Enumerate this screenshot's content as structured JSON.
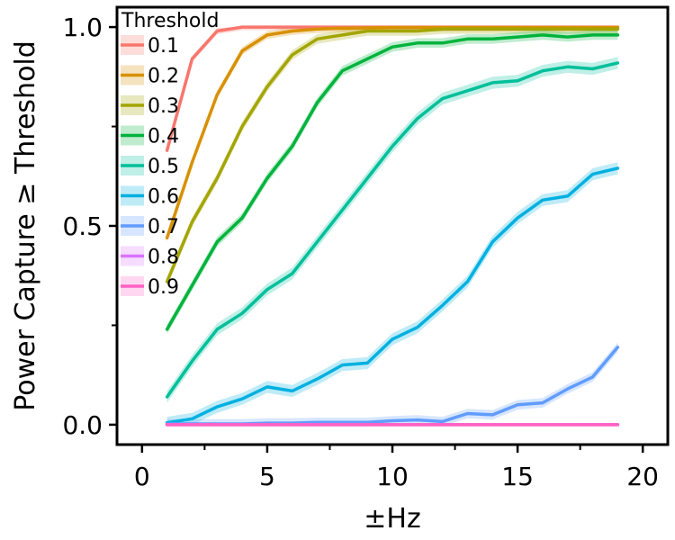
{
  "chart_data": {
    "type": "line",
    "xlabel": "±Hz",
    "ylabel": "Power Capture ≥ Threshold",
    "xlim": [
      -1,
      21
    ],
    "ylim": [
      -0.05,
      1.05
    ],
    "x_ticks": [
      0,
      5,
      10,
      15,
      20
    ],
    "x_tick_labels": [
      "0",
      "5",
      "10",
      "15",
      "20"
    ],
    "y_ticks": [
      0.0,
      0.5,
      1.0
    ],
    "y_tick_labels": [
      "0.0",
      "0.5",
      "1.0"
    ],
    "y_minor_ticks": [
      0.25,
      0.75
    ],
    "grid": false,
    "legend": {
      "title": "Threshold",
      "position": "top-left"
    },
    "x": [
      1,
      2,
      3,
      4,
      5,
      6,
      7,
      8,
      9,
      10,
      11,
      12,
      13,
      14,
      15,
      16,
      17,
      18,
      19
    ],
    "series": [
      {
        "name": "0.1",
        "color": "#f8766d",
        "band": 0.008,
        "values": [
          0.69,
          0.92,
          0.99,
          1.0,
          1.0,
          1.0,
          1.0,
          1.0,
          1.0,
          1.0,
          1.0,
          1.0,
          1.0,
          1.0,
          1.0,
          1.0,
          1.0,
          1.0,
          1.0
        ]
      },
      {
        "name": "0.2",
        "color": "#d89000",
        "band": 0.01,
        "values": [
          0.47,
          0.66,
          0.83,
          0.94,
          0.98,
          0.99,
          0.995,
          0.997,
          0.998,
          0.999,
          0.999,
          0.999,
          0.999,
          0.999,
          0.999,
          0.999,
          0.999,
          0.999,
          0.999
        ]
      },
      {
        "name": "0.3",
        "color": "#a3a500",
        "band": 0.012,
        "values": [
          0.36,
          0.51,
          0.62,
          0.75,
          0.85,
          0.93,
          0.97,
          0.98,
          0.99,
          0.99,
          0.99,
          0.995,
          0.995,
          0.995,
          0.995,
          0.995,
          0.995,
          0.995,
          0.995
        ]
      },
      {
        "name": "0.4",
        "color": "#00b33c",
        "band": 0.012,
        "values": [
          0.24,
          0.35,
          0.46,
          0.52,
          0.62,
          0.7,
          0.81,
          0.89,
          0.92,
          0.95,
          0.96,
          0.96,
          0.97,
          0.97,
          0.975,
          0.98,
          0.975,
          0.98,
          0.98
        ]
      },
      {
        "name": "0.5",
        "color": "#00bf9a",
        "band": 0.015,
        "values": [
          0.07,
          0.16,
          0.24,
          0.28,
          0.34,
          0.38,
          0.46,
          0.54,
          0.62,
          0.7,
          0.77,
          0.82,
          0.84,
          0.86,
          0.865,
          0.89,
          0.9,
          0.895,
          0.91
        ]
      },
      {
        "name": "0.6",
        "color": "#00b0e0",
        "band": 0.015,
        "values": [
          0.005,
          0.015,
          0.045,
          0.065,
          0.095,
          0.085,
          0.115,
          0.15,
          0.155,
          0.215,
          0.245,
          0.3,
          0.36,
          0.46,
          0.52,
          0.565,
          0.575,
          0.63,
          0.645
        ]
      },
      {
        "name": "0.7",
        "color": "#619cff",
        "band": 0.012,
        "values": [
          0.002,
          0.002,
          0.002,
          0.002,
          0.004,
          0.004,
          0.006,
          0.006,
          0.006,
          0.01,
          0.012,
          0.008,
          0.028,
          0.025,
          0.05,
          0.055,
          0.09,
          0.12,
          0.195
        ]
      },
      {
        "name": "0.8",
        "color": "#db72fb",
        "band": 0.003,
        "values": [
          0,
          0,
          0,
          0,
          0,
          0,
          0,
          0,
          0,
          0,
          0,
          0,
          0,
          0,
          0,
          0,
          0,
          0,
          0
        ]
      },
      {
        "name": "0.9",
        "color": "#ff61c3",
        "band": 0.002,
        "values": [
          0,
          0,
          0,
          0,
          0,
          0,
          0,
          0,
          0,
          0,
          0,
          0,
          0,
          0,
          0,
          0,
          0,
          0,
          0
        ]
      }
    ]
  }
}
